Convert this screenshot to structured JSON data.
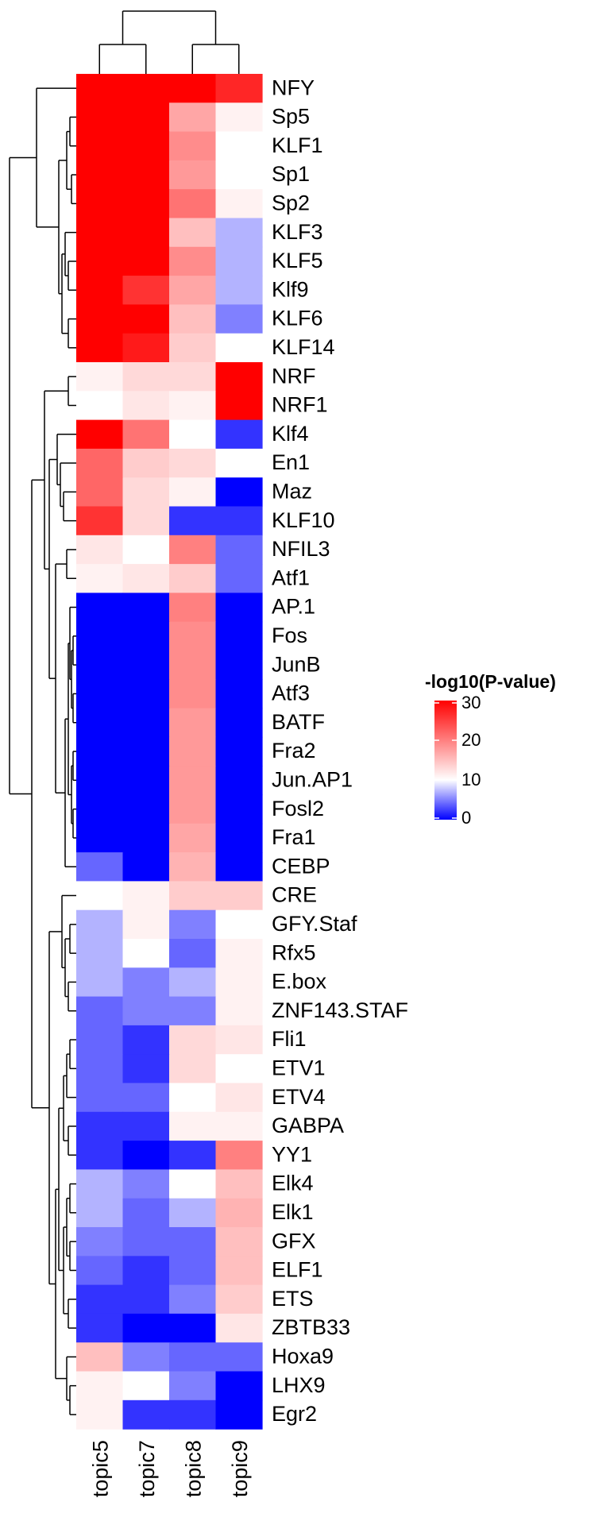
{
  "chart_data": {
    "type": "heatmap",
    "columns": [
      "topic5",
      "topic7",
      "topic8",
      "topic9"
    ],
    "rows": [
      "NFY",
      "Sp5",
      "KLF1",
      "Sp1",
      "Sp2",
      "KLF3",
      "KLF5",
      "Klf9",
      "KLF6",
      "KLF14",
      "NRF",
      "NRF1",
      "Klf4",
      "En1",
      "Maz",
      "KLF10",
      "NFIL3",
      "Atf1",
      "AP.1",
      "Fos",
      "JunB",
      "Atf3",
      "BATF",
      "Fra2",
      "Jun.AP1",
      "Fosl2",
      "Fra1",
      "CEBP",
      "CRE",
      "GFY.Staf",
      "Rfx5",
      "E.box",
      "ZNF143.STAF",
      "Fli1",
      "ETV1",
      "ETV4",
      "GABPA",
      "YY1",
      "Elk4",
      "Elk1",
      "GFX",
      "ELF1",
      "ETS",
      "ZBTB33",
      "Hoxa9",
      "LHX9",
      "Egr2"
    ],
    "values": [
      [
        30,
        30,
        30,
        27
      ],
      [
        30,
        30,
        17,
        11
      ],
      [
        30,
        30,
        19,
        10
      ],
      [
        30,
        30,
        18,
        10
      ],
      [
        30,
        30,
        21,
        11
      ],
      [
        30,
        30,
        15,
        7
      ],
      [
        30,
        30,
        19,
        7
      ],
      [
        30,
        26,
        17,
        7
      ],
      [
        30,
        30,
        15,
        5
      ],
      [
        30,
        28,
        14,
        10
      ],
      [
        11,
        13,
        13,
        30
      ],
      [
        10,
        12,
        11,
        30
      ],
      [
        30,
        21,
        10,
        2
      ],
      [
        22,
        14,
        13,
        10
      ],
      [
        22,
        13,
        11,
        0
      ],
      [
        26,
        13,
        2,
        2
      ],
      [
        12,
        10,
        20,
        4
      ],
      [
        11,
        12,
        14,
        4
      ],
      [
        0,
        0,
        20,
        0
      ],
      [
        0,
        0,
        19,
        0
      ],
      [
        0,
        0,
        19,
        0
      ],
      [
        0,
        0,
        19,
        0
      ],
      [
        0,
        0,
        18,
        0
      ],
      [
        0,
        0,
        18,
        0
      ],
      [
        0,
        0,
        18,
        0
      ],
      [
        0,
        0,
        18,
        0
      ],
      [
        0,
        0,
        17,
        0
      ],
      [
        4,
        0,
        16,
        0
      ],
      [
        10,
        11,
        14,
        14
      ],
      [
        7,
        11,
        5,
        10
      ],
      [
        7,
        10,
        4,
        11
      ],
      [
        7,
        5,
        7,
        11
      ],
      [
        4,
        5,
        5,
        11
      ],
      [
        4,
        2,
        13,
        12
      ],
      [
        4,
        2,
        13,
        10
      ],
      [
        4,
        4,
        10,
        12
      ],
      [
        2,
        2,
        11,
        11
      ],
      [
        2,
        0,
        2,
        20
      ],
      [
        7,
        5,
        10,
        15
      ],
      [
        7,
        4,
        7,
        16
      ],
      [
        5,
        4,
        4,
        15
      ],
      [
        4,
        2,
        4,
        15
      ],
      [
        2,
        2,
        5,
        14
      ],
      [
        2,
        0,
        0,
        12
      ],
      [
        15,
        5,
        4,
        4
      ],
      [
        11,
        10,
        5,
        0
      ],
      [
        11,
        2,
        2,
        0
      ]
    ],
    "legend": {
      "title": "-log10(P-value)",
      "ticks": [
        30,
        20,
        10,
        0
      ],
      "colors": [
        "#0000ff",
        "#ffffff",
        "#ff0000"
      ],
      "color_stops": [
        0,
        10,
        30
      ],
      "placement": "right"
    },
    "clustering": {
      "rows": true,
      "columns": true
    }
  }
}
